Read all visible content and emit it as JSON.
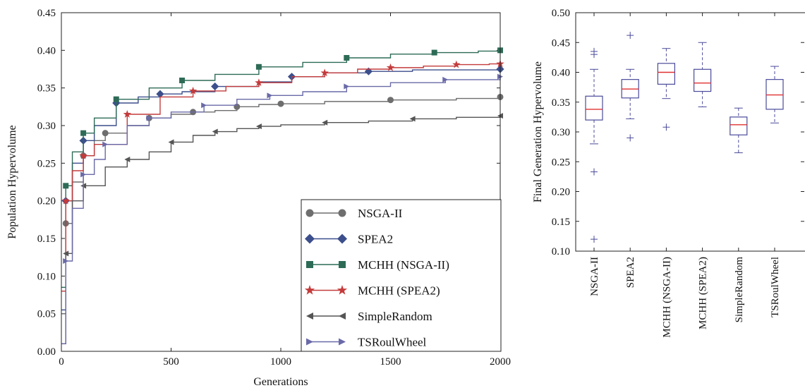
{
  "chart_data": [
    {
      "type": "line",
      "xlabel": "Generations",
      "ylabel": "Population Hypervolume",
      "xlim": [
        0,
        2000
      ],
      "ylim": [
        0.0,
        0.45
      ],
      "x_ticks": [
        "0",
        "500",
        "1000",
        "1500",
        "2000"
      ],
      "y_ticks": [
        "0.00",
        "0.05",
        "0.10",
        "0.15",
        "0.20",
        "0.25",
        "0.30",
        "0.35",
        "0.40",
        "0.45"
      ],
      "grid": false,
      "legend_position": "lower-right",
      "series": [
        {
          "name": "NSGA-II",
          "color": "#6e6e6e",
          "marker": "circle",
          "x": [
            0,
            20,
            50,
            100,
            150,
            200,
            300,
            400,
            500,
            600,
            700,
            800,
            900,
            1000,
            1200,
            1500,
            1800,
            2000
          ],
          "y": [
            0.05,
            0.17,
            0.225,
            0.26,
            0.28,
            0.29,
            0.3,
            0.31,
            0.315,
            0.318,
            0.32,
            0.325,
            0.328,
            0.329,
            0.332,
            0.334,
            0.336,
            0.338
          ]
        },
        {
          "name": "SPEA2",
          "color": "#3c4f8c",
          "marker": "diamond",
          "x": [
            0,
            20,
            50,
            100,
            150,
            250,
            350,
            450,
            550,
            700,
            900,
            1050,
            1200,
            1400,
            1600,
            2000
          ],
          "y": [
            0.055,
            0.2,
            0.25,
            0.28,
            0.3,
            0.33,
            0.338,
            0.342,
            0.345,
            0.352,
            0.358,
            0.365,
            0.37,
            0.372,
            0.374,
            0.375
          ]
        },
        {
          "name": "MCHH (NSGA-II)",
          "color": "#2d6b57",
          "marker": "square",
          "x": [
            0,
            20,
            50,
            100,
            150,
            250,
            400,
            550,
            700,
            900,
            1100,
            1300,
            1500,
            1700,
            1900,
            2000
          ],
          "y": [
            0.085,
            0.22,
            0.265,
            0.29,
            0.31,
            0.335,
            0.35,
            0.36,
            0.368,
            0.378,
            0.384,
            0.39,
            0.395,
            0.397,
            0.399,
            0.4
          ]
        },
        {
          "name": "MCHH (SPEA2)",
          "color": "#c43b3b",
          "marker": "star",
          "x": [
            0,
            20,
            50,
            100,
            150,
            300,
            450,
            600,
            750,
            900,
            1050,
            1200,
            1350,
            1500,
            1650,
            1800,
            1950,
            2000
          ],
          "y": [
            0.08,
            0.2,
            0.24,
            0.26,
            0.275,
            0.315,
            0.338,
            0.346,
            0.352,
            0.357,
            0.365,
            0.37,
            0.375,
            0.377,
            0.379,
            0.381,
            0.382,
            0.382
          ]
        },
        {
          "name": "SimpleRandom",
          "color": "#555555",
          "marker": "triangle-left",
          "x": [
            0,
            20,
            50,
            100,
            200,
            300,
            400,
            500,
            600,
            700,
            800,
            900,
            1000,
            1200,
            1400,
            1600,
            1800,
            2000
          ],
          "y": [
            0.01,
            0.13,
            0.2,
            0.22,
            0.245,
            0.255,
            0.265,
            0.278,
            0.287,
            0.292,
            0.296,
            0.299,
            0.301,
            0.304,
            0.306,
            0.309,
            0.311,
            0.313
          ]
        },
        {
          "name": "TSRoulWheel",
          "color": "#6a6aa8",
          "marker": "triangle-right",
          "x": [
            0,
            20,
            50,
            100,
            150,
            200,
            300,
            400,
            500,
            650,
            800,
            950,
            1100,
            1300,
            1500,
            1750,
            2000
          ],
          "y": [
            0.01,
            0.12,
            0.19,
            0.235,
            0.255,
            0.275,
            0.3,
            0.31,
            0.318,
            0.327,
            0.335,
            0.34,
            0.345,
            0.352,
            0.357,
            0.361,
            0.365
          ]
        }
      ]
    },
    {
      "type": "box",
      "ylabel": "Final Generation Hypervolume",
      "ylim": [
        0.1,
        0.5
      ],
      "y_ticks": [
        "0.10",
        "0.15",
        "0.20",
        "0.25",
        "0.30",
        "0.35",
        "0.40",
        "0.45",
        "0.50"
      ],
      "categories": [
        "NSGA-II",
        "SPEA2",
        "MCHH (NSGA-II)",
        "MCHH (SPEA2)",
        "SimpleRandom",
        "TSRoulWheel"
      ],
      "box_color": "#4a4a9a",
      "median_color": "#e03030",
      "boxes": [
        {
          "whisker_low": 0.28,
          "q1": 0.32,
          "median": 0.338,
          "q3": 0.36,
          "whisker_high": 0.405,
          "outliers": [
            0.43,
            0.435,
            0.233,
            0.12
          ]
        },
        {
          "whisker_low": 0.322,
          "q1": 0.357,
          "median": 0.372,
          "q3": 0.388,
          "whisker_high": 0.405,
          "outliers": [
            0.462,
            0.29
          ]
        },
        {
          "whisker_low": 0.356,
          "q1": 0.38,
          "median": 0.4,
          "q3": 0.415,
          "whisker_high": 0.44,
          "outliers": [
            0.308
          ]
        },
        {
          "whisker_low": 0.342,
          "q1": 0.368,
          "median": 0.382,
          "q3": 0.405,
          "whisker_high": 0.45,
          "outliers": []
        },
        {
          "whisker_low": 0.265,
          "q1": 0.295,
          "median": 0.312,
          "q3": 0.325,
          "whisker_high": 0.34,
          "outliers": []
        },
        {
          "whisker_low": 0.315,
          "q1": 0.338,
          "median": 0.362,
          "q3": 0.388,
          "whisker_high": 0.41,
          "outliers": []
        }
      ]
    }
  ]
}
